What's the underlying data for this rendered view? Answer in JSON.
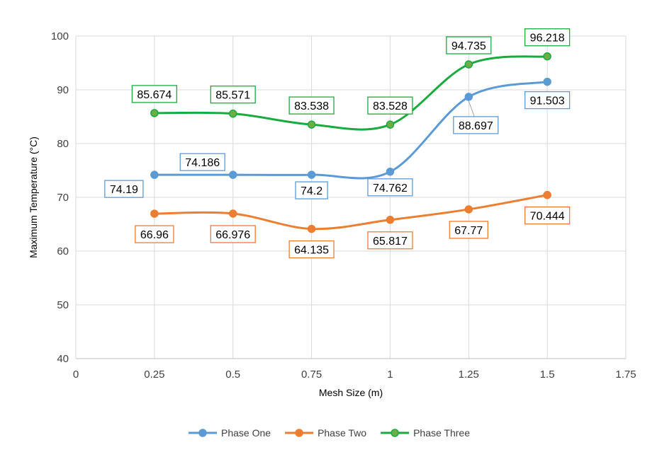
{
  "chart_data": {
    "type": "line",
    "title": "",
    "xlabel": "Mesh Size (m)",
    "ylabel": "Maximum Temperature (°C)",
    "xlim": [
      0,
      1.75
    ],
    "ylim": [
      40,
      100
    ],
    "x_ticks": [
      "0",
      "0.25",
      "0.5",
      "0.75",
      "1",
      "1.25",
      "1.5",
      "1.75"
    ],
    "y_ticks": [
      "40",
      "50",
      "60",
      "70",
      "80",
      "90",
      "100"
    ],
    "grid": true,
    "smoothed": true,
    "legend_position": "bottom",
    "x": [
      0.25,
      0.5,
      0.75,
      1,
      1.25,
      1.5
    ],
    "series": [
      {
        "name": "Phase One",
        "color": "#5B9BD5",
        "values": [
          74.19,
          74.186,
          74.2,
          74.762,
          88.697,
          91.503
        ],
        "labels": [
          "74.19",
          "74.186",
          "74.2",
          "74.762",
          "88.697",
          "91.503"
        ]
      },
      {
        "name": "Phase Two",
        "color": "#ED7D31",
        "values": [
          66.96,
          66.976,
          64.135,
          65.817,
          67.77,
          70.444
        ],
        "labels": [
          "66.96",
          "66.976",
          "64.135",
          "65.817",
          "67.77",
          "70.444"
        ]
      },
      {
        "name": "Phase Three",
        "color": "#1AAB40",
        "marker_fill": "#70AD47",
        "values": [
          85.674,
          85.571,
          83.538,
          83.528,
          94.735,
          96.218
        ],
        "labels": [
          "85.674",
          "85.571",
          "83.538",
          "83.528",
          "94.735",
          "96.218"
        ]
      }
    ]
  }
}
